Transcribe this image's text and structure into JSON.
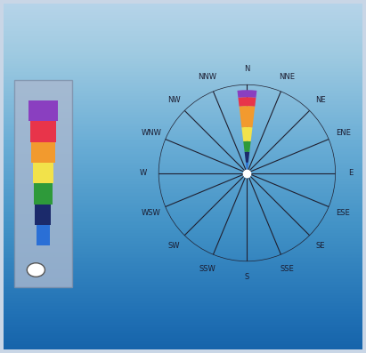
{
  "chart_data": {
    "type": "wind_rose",
    "categories": [
      "N",
      "NNE",
      "NE",
      "ENE",
      "E",
      "ESE",
      "SE",
      "SSE",
      "S",
      "SSW",
      "SW",
      "WSW",
      "W",
      "WNW",
      "NW",
      "NNW"
    ],
    "series": [
      {
        "color": "#2a6fd6",
        "values": [
          12,
          0,
          0,
          0,
          0,
          0,
          0,
          0,
          0,
          0,
          0,
          0,
          0,
          0,
          0,
          0
        ]
      },
      {
        "color": "#1b2a6b",
        "values": [
          12,
          0,
          0,
          0,
          0,
          0,
          0,
          0,
          0,
          0,
          0,
          0,
          0,
          0,
          0,
          0
        ]
      },
      {
        "color": "#2e9a3a",
        "values": [
          12,
          0,
          0,
          0,
          0,
          0,
          0,
          0,
          0,
          0,
          0,
          0,
          0,
          0,
          0,
          0
        ]
      },
      {
        "color": "#f2e24a",
        "values": [
          16,
          0,
          0,
          0,
          0,
          0,
          0,
          0,
          0,
          0,
          0,
          0,
          0,
          0,
          0,
          0
        ]
      },
      {
        "color": "#f29a2e",
        "values": [
          24,
          0,
          0,
          0,
          0,
          0,
          0,
          0,
          0,
          0,
          0,
          0,
          0,
          0,
          0,
          0
        ]
      },
      {
        "color": "#e8344a",
        "values": [
          10,
          0,
          0,
          0,
          0,
          0,
          0,
          0,
          0,
          0,
          0,
          0,
          0,
          0,
          0,
          0
        ]
      },
      {
        "color": "#8a3fc0",
        "values": [
          8,
          0,
          0,
          0,
          0,
          0,
          0,
          0,
          0,
          0,
          0,
          0,
          0,
          0,
          0,
          0
        ]
      }
    ],
    "ylim": [
      0,
      100
    ],
    "stacked": true,
    "grid": true,
    "tick_labels": "x"
  }
}
